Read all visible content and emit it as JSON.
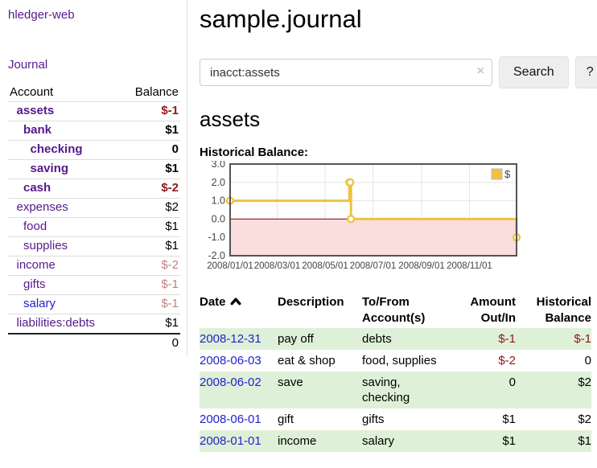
{
  "app": {
    "brand": "hledger-web",
    "nav_journal": "Journal"
  },
  "sidebar": {
    "header": {
      "account": "Account",
      "balance": "Balance"
    },
    "accounts": [
      {
        "name": "assets",
        "level": 1,
        "bold": true,
        "link": "purple",
        "balance": "$-1",
        "bal_style": "neg-strong"
      },
      {
        "name": "bank",
        "level": 2,
        "bold": true,
        "link": "purple",
        "balance": "$1",
        "bal_style": "plain"
      },
      {
        "name": "checking",
        "level": 3,
        "bold": true,
        "link": "purple",
        "balance": "0",
        "bal_style": "plain"
      },
      {
        "name": "saving",
        "level": 3,
        "bold": true,
        "link": "purple",
        "balance": "$1",
        "bal_style": "plain"
      },
      {
        "name": "cash",
        "level": 2,
        "bold": true,
        "link": "purple",
        "balance": "$-2",
        "bal_style": "neg-strong"
      },
      {
        "name": "expenses",
        "level": 1,
        "bold": false,
        "link": "purple",
        "balance": "$2",
        "bal_style": "plain"
      },
      {
        "name": "food",
        "level": 2,
        "bold": false,
        "link": "purple",
        "balance": "$1",
        "bal_style": "plain"
      },
      {
        "name": "supplies",
        "level": 2,
        "bold": false,
        "link": "purple",
        "balance": "$1",
        "bal_style": "plain"
      },
      {
        "name": "income",
        "level": 1,
        "bold": false,
        "link": "purple",
        "balance": "$-2",
        "bal_style": "neg-soft"
      },
      {
        "name": "gifts",
        "level": 2,
        "bold": false,
        "link": "purple",
        "balance": "$-1",
        "bal_style": "neg-soft"
      },
      {
        "name": "salary",
        "level": 2,
        "bold": false,
        "link": "blue",
        "balance": "$-1",
        "bal_style": "neg-soft"
      },
      {
        "name": "liabilities:debts",
        "level": 1,
        "bold": false,
        "link": "purple",
        "balance": "$1",
        "bal_style": "plain"
      }
    ],
    "total": "0"
  },
  "main": {
    "title": "sample.journal",
    "search": {
      "value": "inacct:assets",
      "clear_icon": "×",
      "button_label": "Search",
      "help_label": "?"
    },
    "account_heading": "assets",
    "chart_heading": "Historical Balance:"
  },
  "chart_data": {
    "type": "line",
    "title": "Historical Balance:",
    "series": [
      {
        "name": "$",
        "color": "#edc240",
        "style": "step",
        "points": [
          [
            "2008-01-01",
            1
          ],
          [
            "2008-06-01",
            2
          ],
          [
            "2008-06-02",
            2
          ],
          [
            "2008-06-03",
            0
          ],
          [
            "2008-12-31",
            -1
          ]
        ]
      }
    ],
    "x_range": [
      "2008-01-01",
      "2008-12-31"
    ],
    "ylim": [
      -2,
      3
    ],
    "y_ticks": [
      "3.0",
      "2.0",
      "1.0",
      "0.0",
      "-1.0",
      "-2.0"
    ],
    "x_ticks": [
      "2008/01/01",
      "2008/03/01",
      "2008/05/01",
      "2008/07/01",
      "2008/09/01",
      "2008/11/01"
    ],
    "legend": {
      "label": "$",
      "position": "top-right"
    },
    "grid": true,
    "grid_color": "#e6e6e6",
    "negative_region_color": "#fbdddd",
    "zero_line_color": "#8b0000",
    "border_color": "#545454",
    "tick_label_color": "#444444"
  },
  "register": {
    "columns": [
      "Date",
      "Description",
      "To/From\nAccount(s)",
      "Amount\nOut/In",
      "Historical\nBalance"
    ],
    "rows": [
      {
        "date": "2008-12-31",
        "description": "pay off",
        "accounts": "debts",
        "amount": "$-1",
        "amount_neg": true,
        "balance": "$-1",
        "balance_neg": true,
        "shaded": true
      },
      {
        "date": "2008-06-03",
        "description": "eat & shop",
        "accounts": "food, supplies",
        "amount": "$-2",
        "amount_neg": true,
        "balance": "0",
        "balance_neg": false,
        "shaded": false
      },
      {
        "date": "2008-06-02",
        "description": "save",
        "accounts": "saving,\nchecking",
        "amount": "0",
        "amount_neg": false,
        "balance": "$2",
        "balance_neg": false,
        "shaded": true
      },
      {
        "date": "2008-06-01",
        "description": "gift",
        "accounts": "gifts",
        "amount": "$1",
        "amount_neg": false,
        "balance": "$2",
        "balance_neg": false,
        "shaded": false
      },
      {
        "date": "2008-01-01",
        "description": "income",
        "accounts": "salary",
        "amount": "$1",
        "amount_neg": false,
        "balance": "$1",
        "balance_neg": false,
        "shaded": true
      }
    ]
  }
}
